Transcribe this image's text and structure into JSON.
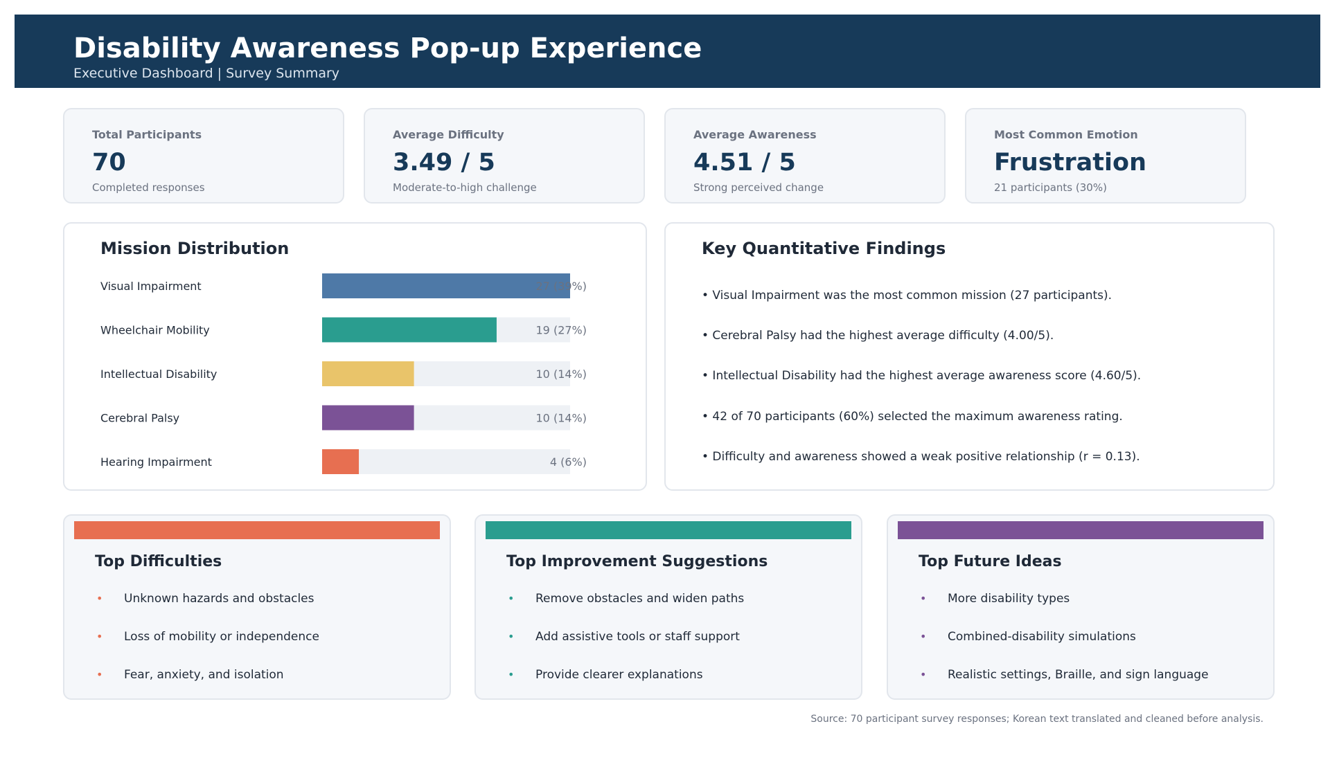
{
  "header": {
    "title": "Disability Awareness Pop-up Experience",
    "subtitle": "Executive Dashboard | Survey Summary"
  },
  "kpis": [
    {
      "label": "Total Participants",
      "value": "70",
      "note": "Completed responses"
    },
    {
      "label": "Average Difficulty",
      "value": "3.49 / 5",
      "note": "Moderate-to-high challenge"
    },
    {
      "label": "Average Awareness",
      "value": "4.51 / 5",
      "note": "Strong perceived change"
    },
    {
      "label": "Most Common Emotion",
      "value": "Frustration",
      "note": "21 participants (30%)"
    }
  ],
  "chart_data": {
    "type": "bar",
    "orientation": "horizontal",
    "title": "Mission Distribution",
    "categories": [
      "Visual Impairment",
      "Wheelchair Mobility",
      "Intellectual Disability",
      "Cerebral Palsy",
      "Hearing Impairment"
    ],
    "values": [
      27,
      19,
      10,
      10,
      4
    ],
    "value_labels": [
      "27  (39%)",
      "19  (27%)",
      "10  (14%)",
      "10  (14%)",
      "4  (6%)"
    ],
    "xlim": [
      0,
      27
    ],
    "colors": [
      "#4e79a7",
      "#2a9d8f",
      "#e9c46a",
      "#7b5296",
      "#e76f51"
    ],
    "track_color": "#eef1f5",
    "label_color": "#6b7280",
    "grid": false
  },
  "findings": {
    "title": "Key Quantitative Findings",
    "items": [
      "• Visual Impairment was the most common mission (27 participants).",
      "• Cerebral Palsy had the highest average difficulty (4.00/5).",
      "• Intellectual Disability had the highest average awareness score (4.60/5).",
      "• 42 of 70 participants (60%) selected the maximum awareness rating.",
      "• Difficulty and awareness showed a weak positive relationship (r = 0.13)."
    ]
  },
  "cards": [
    {
      "title": "Top Difficulties",
      "color": "#e76f51",
      "items": [
        "Unknown hazards and obstacles",
        "Loss of mobility or independence",
        "Fear, anxiety, and isolation"
      ]
    },
    {
      "title": "Top Improvement Suggestions",
      "color": "#2a9d8f",
      "items": [
        "Remove obstacles and widen paths",
        "Add assistive tools or staff support",
        "Provide clearer explanations"
      ]
    },
    {
      "title": "Top Future Ideas",
      "color": "#7b5296",
      "items": [
        "More disability types",
        "Combined-disability simulations",
        "Realistic settings, Braille, and sign language"
      ]
    }
  ],
  "bullet_glyph": "•",
  "source": "Source: 70 participant survey responses; Korean text translated and cleaned before analysis."
}
